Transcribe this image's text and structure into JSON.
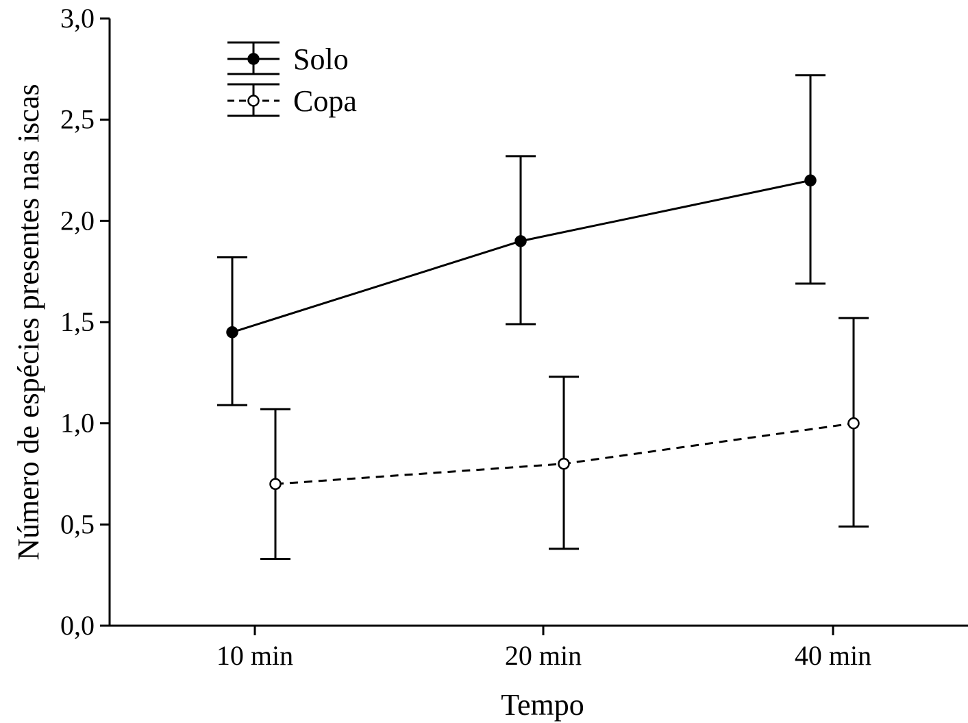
{
  "chart_data": {
    "type": "line",
    "xlabel": "Tempo",
    "ylabel": "Número de espécies presentes nas iscas",
    "categories": [
      "10 min",
      "20 min",
      "40 min"
    ],
    "ylim": [
      0,
      3
    ],
    "yticks": [
      "0,0",
      "0,5",
      "1,0",
      "1,5",
      "2,0",
      "2,5",
      "3,0"
    ],
    "ytick_values": [
      0,
      0.5,
      1,
      1.5,
      2,
      2.5,
      3
    ],
    "legend_position": "top-left",
    "grid": false,
    "series": [
      {
        "name": "Solo",
        "values": [
          1.45,
          1.9,
          2.2
        ],
        "err_low": [
          1.09,
          1.49,
          1.69
        ],
        "err_high": [
          1.82,
          2.32,
          2.72
        ],
        "line_style": "solid",
        "marker": "filled-circle",
        "color": "#000000"
      },
      {
        "name": "Copa",
        "values": [
          0.7,
          0.8,
          1.0
        ],
        "err_low": [
          0.33,
          0.38,
          0.49
        ],
        "err_high": [
          1.07,
          1.23,
          1.52
        ],
        "line_style": "dashed",
        "marker": "open-circle",
        "color": "#000000"
      }
    ]
  }
}
